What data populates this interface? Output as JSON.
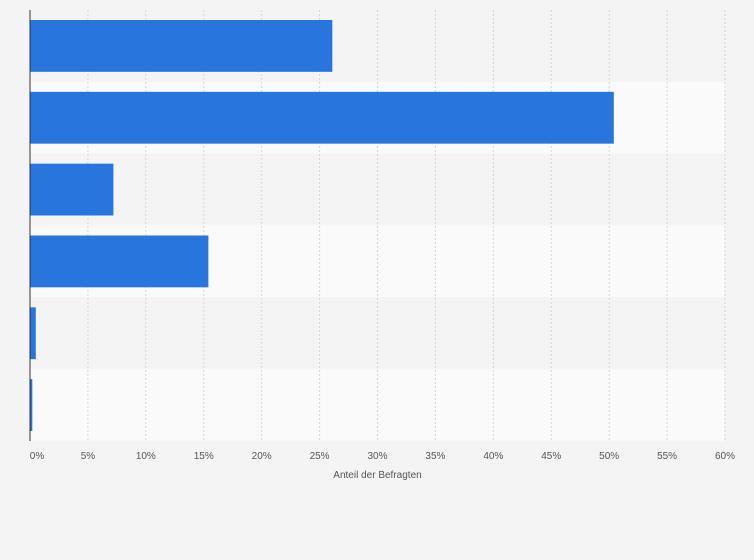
{
  "chart_data": {
    "type": "bar",
    "orientation": "horizontal",
    "categories": [
      "",
      "",
      "",
      "",
      "",
      ""
    ],
    "values": [
      26.1,
      50.4,
      7.2,
      15.4,
      0.5,
      0.2
    ],
    "title": "",
    "xlabel": "Anteil der Befragten",
    "ylabel": "",
    "xlim": [
      0,
      60
    ],
    "xticks": [
      "0%",
      "5%",
      "10%",
      "15%",
      "20%",
      "25%",
      "30%",
      "35%",
      "40%",
      "45%",
      "50%",
      "55%",
      "60%"
    ],
    "grid": true,
    "legend": "none",
    "bar_color": "#2876dd"
  }
}
